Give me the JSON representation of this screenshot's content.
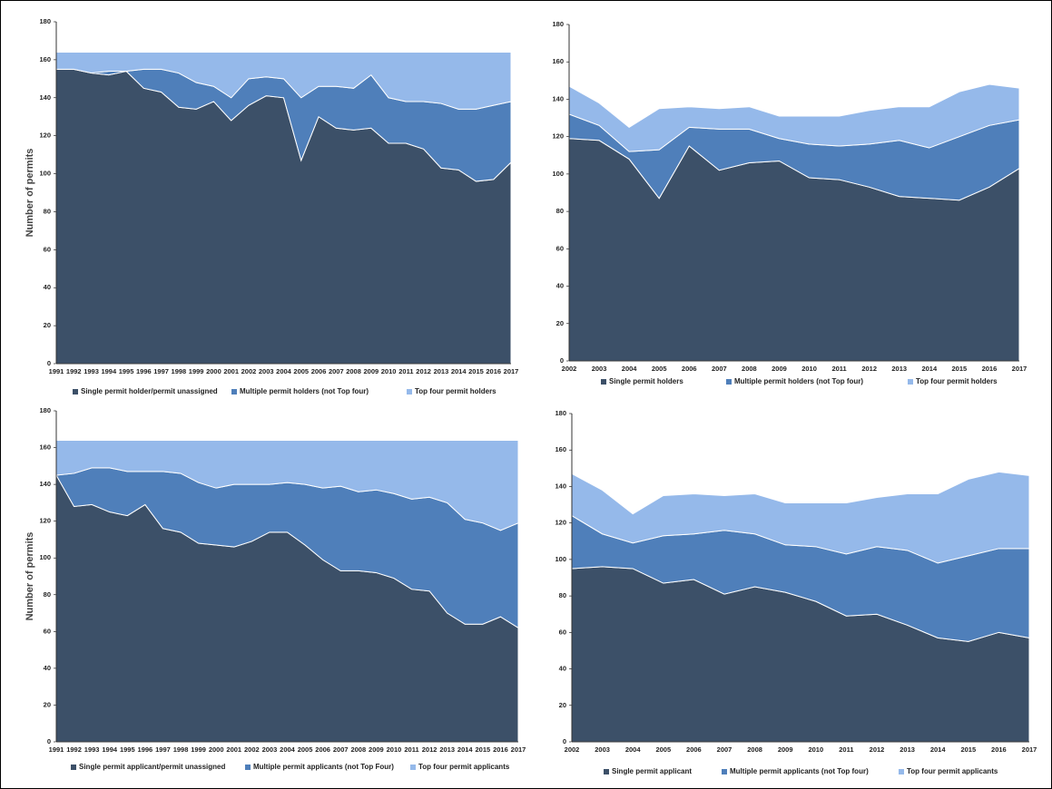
{
  "chart_data": [
    {
      "type": "area",
      "stacked": true,
      "y_label": "Number of permits",
      "categories": [
        "1991",
        "1992",
        "1993",
        "1994",
        "1995",
        "1996",
        "1997",
        "1998",
        "1999",
        "2000",
        "2001",
        "2002",
        "2003",
        "2004",
        "2005",
        "2006",
        "2007",
        "2008",
        "2009",
        "2010",
        "2011",
        "2012",
        "2013",
        "2014",
        "2015",
        "2016",
        "2017"
      ],
      "ylim": [
        0,
        180
      ],
      "yticks": [
        0,
        20,
        40,
        60,
        80,
        100,
        120,
        140,
        160,
        180
      ],
      "series": [
        {
          "name": "Single permit holder/permit unassigned",
          "color": "#3c5068",
          "values": [
            155,
            155,
            153,
            152,
            154,
            145,
            143,
            135,
            134,
            138,
            128,
            136,
            141,
            140,
            107,
            130,
            124,
            123,
            124,
            116,
            116,
            113,
            103,
            102,
            96,
            97,
            106
          ]
        },
        {
          "name": "Multiple permit holders (not Top four)",
          "color": "#4f7fba",
          "values": [
            0,
            0,
            0,
            2,
            0,
            10,
            12,
            18,
            14,
            8,
            12,
            14,
            10,
            10,
            33,
            16,
            22,
            22,
            28,
            24,
            22,
            25,
            34,
            32,
            38,
            39,
            32
          ]
        },
        {
          "name": "Top four permit holders",
          "color": "#95b9ea",
          "values": [
            9,
            9,
            11,
            10,
            10,
            9,
            9,
            11,
            16,
            18,
            24,
            14,
            13,
            14,
            24,
            18,
            18,
            19,
            12,
            24,
            26,
            26,
            27,
            30,
            30,
            28,
            26
          ]
        }
      ]
    },
    {
      "type": "area",
      "stacked": true,
      "categories": [
        "2002",
        "2003",
        "2004",
        "2005",
        "2006",
        "2007",
        "2008",
        "2009",
        "2010",
        "2011",
        "2012",
        "2013",
        "2014",
        "2015",
        "2016",
        "2017"
      ],
      "ylim": [
        0,
        180
      ],
      "yticks": [
        0,
        20,
        40,
        60,
        80,
        100,
        120,
        140,
        160,
        180
      ],
      "series": [
        {
          "name": "Single permit holders",
          "color": "#3c5068",
          "values": [
            119,
            118,
            108,
            87,
            115,
            102,
            106,
            107,
            98,
            97,
            93,
            88,
            87,
            86,
            93,
            103
          ]
        },
        {
          "name": "Multiple permit holders (not Top four)",
          "color": "#4f7fba",
          "values": [
            13,
            8,
            4,
            26,
            10,
            22,
            18,
            12,
            18,
            18,
            23,
            30,
            27,
            34,
            33,
            26
          ]
        },
        {
          "name": "Top four permit holders",
          "color": "#95b9ea",
          "values": [
            15,
            12,
            13,
            22,
            11,
            11,
            12,
            12,
            15,
            16,
            18,
            18,
            22,
            24,
            22,
            17
          ]
        }
      ]
    },
    {
      "type": "area",
      "stacked": true,
      "y_label": "Number of permits",
      "categories": [
        "1991",
        "1992",
        "1993",
        "1994",
        "1995",
        "1996",
        "1997",
        "1998",
        "1999",
        "2000",
        "2001",
        "2002",
        "2003",
        "2004",
        "2005",
        "2006",
        "2007",
        "2008",
        "2009",
        "2010",
        "2011",
        "2012",
        "2013",
        "2014",
        "2015",
        "2016",
        "2017"
      ],
      "ylim": [
        0,
        180
      ],
      "yticks": [
        0,
        20,
        40,
        60,
        80,
        100,
        120,
        140,
        160,
        180
      ],
      "series": [
        {
          "name": "Single permit applicant/permit unassigned",
          "color": "#3c5068",
          "values": [
            145,
            128,
            129,
            125,
            123,
            129,
            116,
            114,
            108,
            107,
            106,
            109,
            114,
            114,
            107,
            99,
            93,
            93,
            92,
            89,
            83,
            82,
            70,
            64,
            64,
            68,
            62
          ]
        },
        {
          "name": "Multiple permit applicants (not Top Four)",
          "color": "#4f7fba",
          "values": [
            0,
            18,
            20,
            24,
            24,
            18,
            31,
            32,
            33,
            31,
            34,
            31,
            26,
            27,
            33,
            39,
            46,
            43,
            45,
            46,
            49,
            51,
            60,
            57,
            55,
            47,
            57
          ]
        },
        {
          "name": "Top four permit applicants",
          "color": "#95b9ea",
          "values": [
            19,
            18,
            15,
            15,
            17,
            17,
            17,
            18,
            23,
            26,
            24,
            24,
            24,
            23,
            24,
            26,
            25,
            28,
            27,
            29,
            32,
            31,
            34,
            43,
            45,
            49,
            45
          ]
        }
      ]
    },
    {
      "type": "area",
      "stacked": true,
      "categories": [
        "2002",
        "2003",
        "2004",
        "2005",
        "2006",
        "2007",
        "2008",
        "2009",
        "2010",
        "2011",
        "2012",
        "2013",
        "2014",
        "2015",
        "2016",
        "2017"
      ],
      "ylim": [
        0,
        180
      ],
      "yticks": [
        0,
        20,
        40,
        60,
        80,
        100,
        120,
        140,
        160,
        180
      ],
      "series": [
        {
          "name": "Single permit applicant",
          "color": "#3c5068",
          "values": [
            95,
            96,
            95,
            87,
            89,
            81,
            85,
            82,
            77,
            69,
            70,
            64,
            57,
            55,
            60,
            57
          ]
        },
        {
          "name": "Multiple permit applicants (not Top four)",
          "color": "#4f7fba",
          "values": [
            29,
            18,
            14,
            26,
            25,
            35,
            29,
            26,
            30,
            34,
            37,
            41,
            41,
            47,
            46,
            49
          ]
        },
        {
          "name": "Top four permit applicants",
          "color": "#95b9ea",
          "values": [
            23,
            24,
            16,
            22,
            22,
            19,
            22,
            23,
            24,
            28,
            27,
            31,
            38,
            42,
            42,
            40
          ]
        }
      ]
    }
  ]
}
